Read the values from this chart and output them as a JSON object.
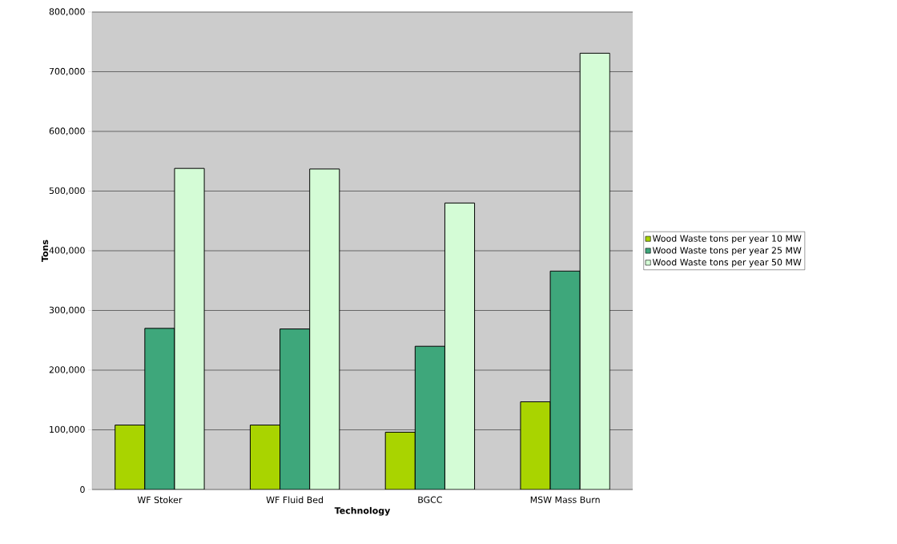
{
  "chart_data": {
    "type": "bar",
    "xlabel": "Technology",
    "ylabel": "Tons",
    "categories": [
      "WF Stoker",
      "WF Fluid Bed",
      "BGCC",
      "MSW Mass Burn"
    ],
    "series": [
      {
        "name": "Wood Waste tons per year 10 MW",
        "color": "#a9d400",
        "values": [
          108000,
          108000,
          96000,
          147000
        ]
      },
      {
        "name": "Wood Waste tons per year 25 MW",
        "color": "#3ea77b",
        "values": [
          270000,
          269000,
          240000,
          366000
        ]
      },
      {
        "name": "Wood Waste tons per year 50 MW",
        "color": "#d4fcd6",
        "values": [
          538000,
          537000,
          480000,
          731000
        ]
      }
    ],
    "ylim": [
      0,
      800000
    ],
    "yticks": [
      {
        "value": 0,
        "label": "0"
      },
      {
        "value": 100000,
        "label": "100,000"
      },
      {
        "value": 200000,
        "label": "200,000"
      },
      {
        "value": 300000,
        "label": "300,000"
      },
      {
        "value": 400000,
        "label": "400,000"
      },
      {
        "value": 500000,
        "label": "500,000"
      },
      {
        "value": 600000,
        "label": "600,000"
      },
      {
        "value": 700000,
        "label": "700,000"
      },
      {
        "value": 800000,
        "label": "800,000"
      }
    ],
    "grid": "y",
    "legend": "right"
  }
}
